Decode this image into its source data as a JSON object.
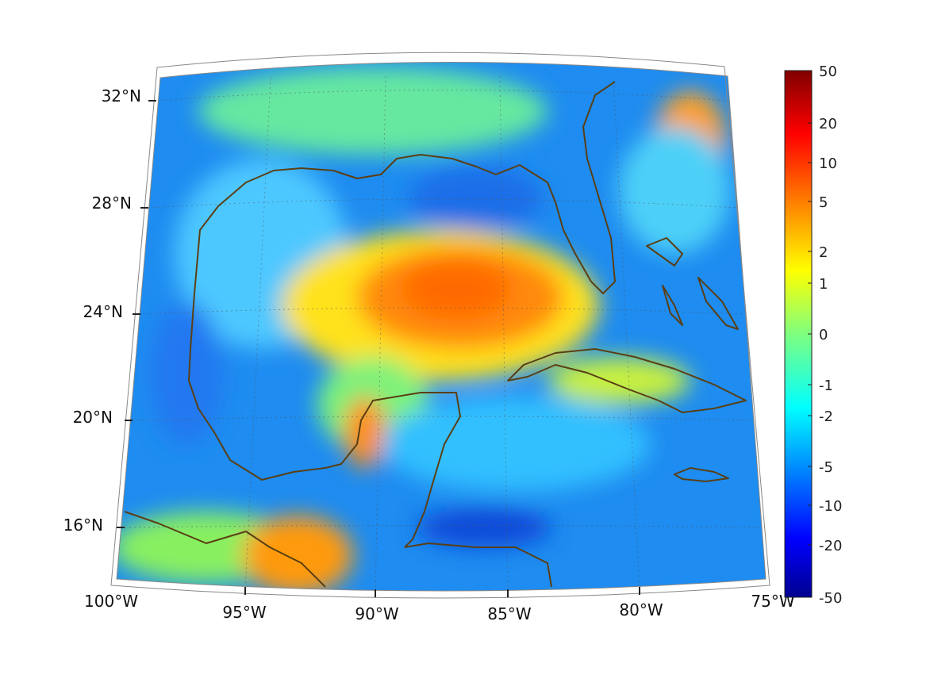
{
  "map": {
    "lat_labels": [
      "32°N",
      "28°N",
      "24°N",
      "20°N",
      "16°N"
    ],
    "lon_labels": [
      "100°W",
      "95°W",
      "90°W",
      "85°W",
      "80°W",
      "75°W"
    ],
    "extent": {
      "lon": [
        -100,
        -75
      ],
      "lat": [
        14,
        33
      ]
    },
    "graticule": "dotted"
  },
  "colorbar": {
    "ticks": [
      "50",
      "20",
      "10",
      "5",
      "2",
      "1",
      "0",
      "-1",
      "-2",
      "-5",
      "-10",
      "-20",
      "-50"
    ],
    "colormap": "jet"
  },
  "colors": {
    "coastline": "#5a3f14",
    "background": "#ffffff"
  }
}
